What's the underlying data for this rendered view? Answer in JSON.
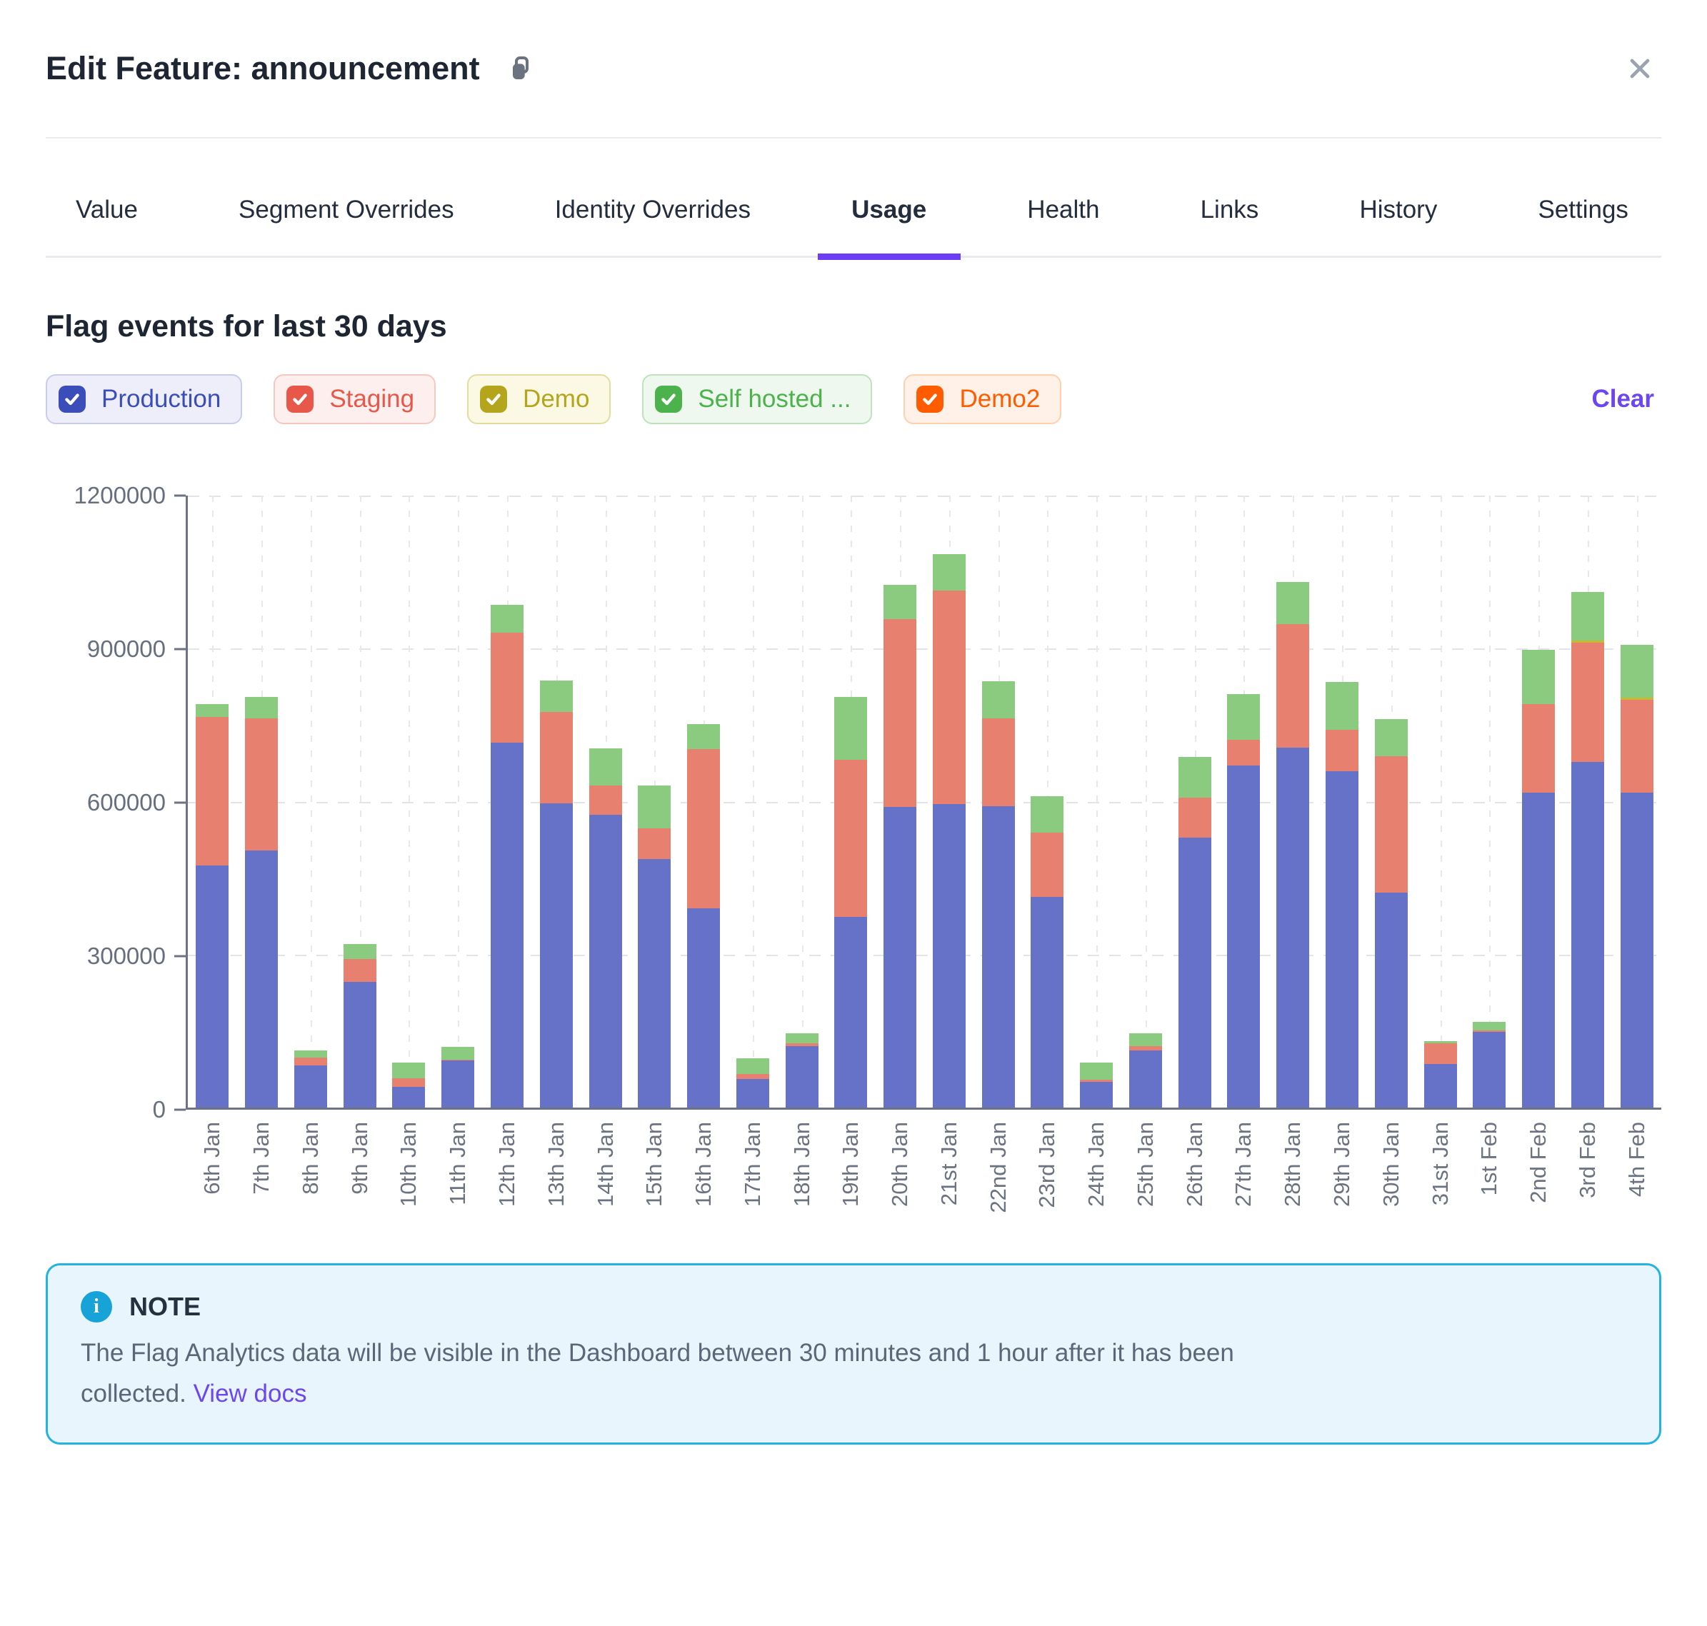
{
  "header": {
    "title": "Edit Feature: announcement"
  },
  "tabs": {
    "active": "Usage",
    "items": [
      "Value",
      "Segment Overrides",
      "Identity Overrides",
      "Usage",
      "Health",
      "Links",
      "History",
      "Settings"
    ]
  },
  "section_title": "Flag events for last 30 days",
  "filters": {
    "clear_label": "Clear",
    "items": [
      {
        "label": "Production",
        "checked": true,
        "color": "#3a4db9",
        "bg": "#edeefa",
        "border": "#c9cdec"
      },
      {
        "label": "Staging",
        "checked": true,
        "color": "#e8584a",
        "bg": "#fdefed",
        "border": "#f6c8c2"
      },
      {
        "label": "Demo",
        "checked": true,
        "color": "#b4a51d",
        "bg": "#fbf8e4",
        "border": "#e3dca0"
      },
      {
        "label": "Self hosted ...",
        "checked": true,
        "color": "#4cb34c",
        "bg": "#eef8ee",
        "border": "#bfe2bd"
      },
      {
        "label": "Demo2",
        "checked": true,
        "color": "#ff5c00",
        "bg": "#fff1e7",
        "border": "#ffd0ad"
      }
    ]
  },
  "chart_data": {
    "type": "bar",
    "stacked": true,
    "title": "Flag events for last 30 days",
    "xlabel": "",
    "ylabel": "",
    "ylim": [
      0,
      1200000
    ],
    "yticks": [
      0,
      300000,
      600000,
      900000,
      1200000
    ],
    "grid": true,
    "legend_position": "top-left-chips",
    "categories": [
      "6th Jan",
      "7th Jan",
      "8th Jan",
      "9th Jan",
      "10th Jan",
      "11th Jan",
      "12th Jan",
      "13th Jan",
      "14th Jan",
      "15th Jan",
      "16th Jan",
      "17th Jan",
      "18th Jan",
      "19th Jan",
      "20th Jan",
      "21st Jan",
      "22nd Jan",
      "23rd Jan",
      "24th Jan",
      "25th Jan",
      "26th Jan",
      "27th Jan",
      "28th Jan",
      "29th Jan",
      "30th Jan",
      "31st Jan",
      "1st Feb",
      "2nd Feb",
      "3rd Feb",
      "4th Feb"
    ],
    "series": [
      {
        "name": "Production",
        "color": "#6672c8",
        "values": [
          473000,
          502000,
          82000,
          245000,
          40000,
          92000,
          713000,
          595000,
          572000,
          486000,
          390000,
          56000,
          120000,
          372000,
          587000,
          593000,
          589000,
          411000,
          50000,
          112000,
          527000,
          669000,
          703000,
          657000,
          420000,
          85000,
          148000,
          616000,
          676000,
          616000
        ]
      },
      {
        "name": "Staging",
        "color": "#e8806f",
        "values": [
          290000,
          258000,
          16000,
          45000,
          17000,
          2000,
          215000,
          178000,
          58000,
          60000,
          310000,
          10000,
          5000,
          308000,
          368000,
          417000,
          171000,
          126000,
          4000,
          8000,
          78000,
          50000,
          241000,
          81000,
          266000,
          40000,
          3000,
          173000,
          233000,
          181000
        ]
      },
      {
        "name": "Demo",
        "color": "#c9b832",
        "values": [
          0,
          0,
          0,
          0,
          0,
          0,
          0,
          0,
          0,
          0,
          0,
          0,
          0,
          0,
          0,
          0,
          0,
          0,
          0,
          0,
          0,
          0,
          0,
          0,
          0,
          0,
          0,
          0,
          4000,
          4000
        ]
      },
      {
        "name": "Self hosted ...",
        "color": "#8bcb80",
        "values": [
          25000,
          42000,
          13000,
          30000,
          31000,
          24000,
          55000,
          62000,
          72000,
          84000,
          50000,
          30000,
          20000,
          122000,
          66000,
          72000,
          73000,
          71000,
          34000,
          25000,
          80000,
          89000,
          83000,
          93000,
          73000,
          5000,
          16000,
          106000,
          94000,
          103000
        ]
      }
    ]
  },
  "note": {
    "label": "NOTE",
    "line1": "The Flag Analytics data will be visible in the Dashboard between 30 minutes and 1 hour after it has been",
    "line2_prefix": "collected. ",
    "link_label": "View docs"
  },
  "colors": {
    "accent_purple": "#6d3df5",
    "note_border": "#22b3e3",
    "note_background": "#e9f5fc",
    "note_icon": "#17a3d8",
    "axis_gray": "#6c7383"
  }
}
